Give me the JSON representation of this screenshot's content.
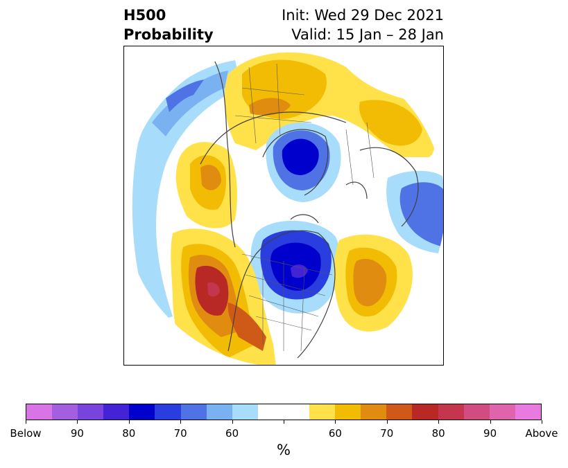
{
  "header": {
    "title_line1": "H500",
    "title_line2": "Probability",
    "init_text": "Init: Wed 29 Dec 2021",
    "valid_text": "Valid: 15 Jan – 28 Jan"
  },
  "map": {
    "projection": "north-polar-stereographic",
    "field": "500 hPa height anomaly probability"
  },
  "colorbar": {
    "label": "%",
    "colors": [
      "#d974e6",
      "#a45ee0",
      "#7844dd",
      "#4422d6",
      "#0000cc",
      "#2a3ddf",
      "#4f72e4",
      "#7ab1f0",
      "#a8dcfb",
      "#ffffff",
      "#ffffff",
      "#ffe24a",
      "#f2bc04",
      "#e08c10",
      "#cf5a17",
      "#b82825",
      "#c3364e",
      "#d14c80",
      "#e064ab",
      "#e97ae0"
    ],
    "ticks": [
      "Below",
      "90",
      "80",
      "70",
      "60",
      "",
      "60",
      "70",
      "80",
      "90",
      "Above"
    ]
  }
}
